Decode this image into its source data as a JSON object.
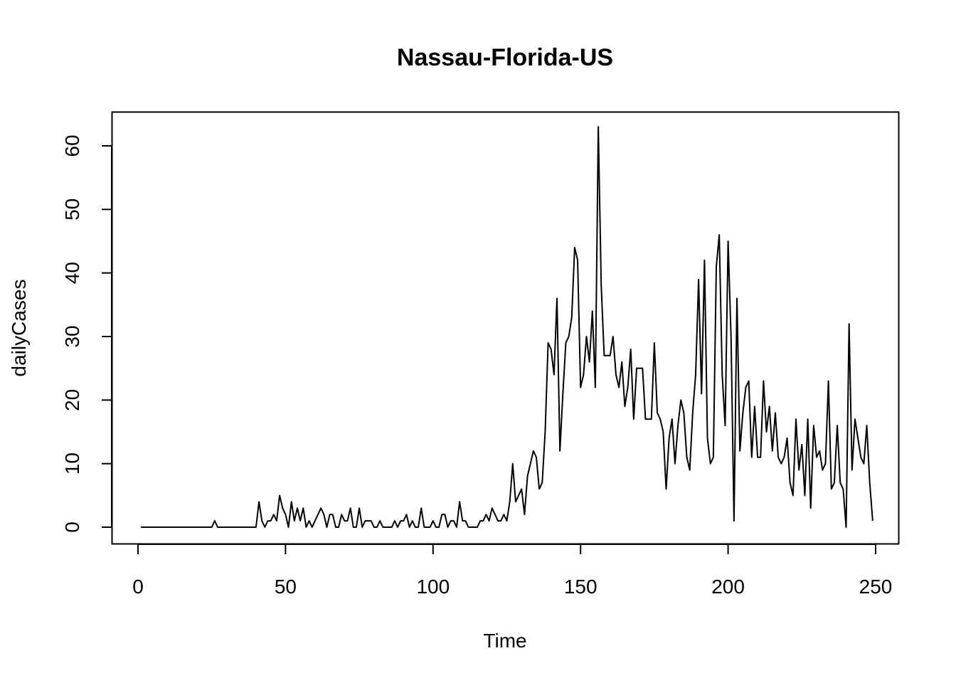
{
  "chart_data": {
    "type": "line",
    "title": "Nassau-Florida-US",
    "xlabel": "Time",
    "ylabel": "dailyCases",
    "xlim": [
      1,
      248
    ],
    "ylim": [
      0,
      63
    ],
    "x_ticks": [
      0,
      50,
      100,
      150,
      200,
      250
    ],
    "x_tick_labels": [
      "0",
      "50",
      "100",
      "150",
      "200",
      "250"
    ],
    "y_ticks": [
      0,
      10,
      20,
      30,
      40,
      50,
      60
    ],
    "y_tick_labels": [
      "0",
      "10",
      "20",
      "30",
      "40",
      "50",
      "60"
    ],
    "grid": false,
    "legend": "none",
    "line_color": "#000000",
    "series": [
      {
        "x_start": 1,
        "values": [
          0,
          0,
          0,
          0,
          0,
          0,
          0,
          0,
          0,
          0,
          0,
          0,
          0,
          0,
          0,
          0,
          0,
          0,
          0,
          0,
          0,
          0,
          0,
          0,
          0,
          1,
          0,
          0,
          0,
          0,
          0,
          0,
          0,
          0,
          0,
          0,
          0,
          0,
          0,
          0,
          4,
          1,
          0,
          1,
          1,
          2,
          1,
          5,
          3,
          2,
          0,
          4,
          1,
          3,
          1,
          3,
          0,
          1,
          0,
          1,
          2,
          3,
          2,
          0,
          2,
          2,
          0,
          0,
          2,
          1,
          1,
          3,
          0,
          0,
          3,
          0,
          1,
          1,
          1,
          0,
          0,
          1,
          0,
          0,
          0,
          0,
          1,
          0,
          1,
          1,
          2,
          0,
          1,
          0,
          0,
          3,
          0,
          0,
          0,
          1,
          0,
          0,
          2,
          2,
          0,
          1,
          1,
          0,
          4,
          1,
          1,
          0,
          0,
          0,
          0,
          1,
          1,
          2,
          1,
          3,
          2,
          1,
          1,
          2,
          1,
          4,
          10,
          4,
          5,
          6,
          2,
          8,
          10,
          12,
          11,
          6,
          7,
          15,
          29,
          28,
          24,
          36,
          12,
          21,
          29,
          30,
          33,
          44,
          42,
          22,
          24,
          30,
          26,
          34,
          22,
          63,
          38,
          27,
          27,
          27,
          30,
          24,
          22,
          26,
          19,
          22,
          28,
          17,
          25,
          25,
          25,
          17,
          17,
          17,
          29,
          18,
          17,
          15,
          6,
          14,
          17,
          10,
          16,
          20,
          18,
          11,
          9,
          18,
          24,
          39,
          21,
          42,
          14,
          10,
          11,
          41,
          46,
          24,
          16,
          45,
          30,
          1,
          36,
          12,
          18,
          22,
          23,
          11,
          19,
          11,
          11,
          23,
          15,
          19,
          12,
          18,
          11,
          10,
          11,
          14,
          7,
          5,
          17,
          9,
          13,
          5,
          17,
          3,
          16,
          11,
          12,
          9,
          10,
          23,
          6,
          7,
          16,
          7,
          6,
          0,
          32,
          9,
          17,
          14,
          11,
          10,
          16,
          7,
          1
        ]
      }
    ]
  }
}
